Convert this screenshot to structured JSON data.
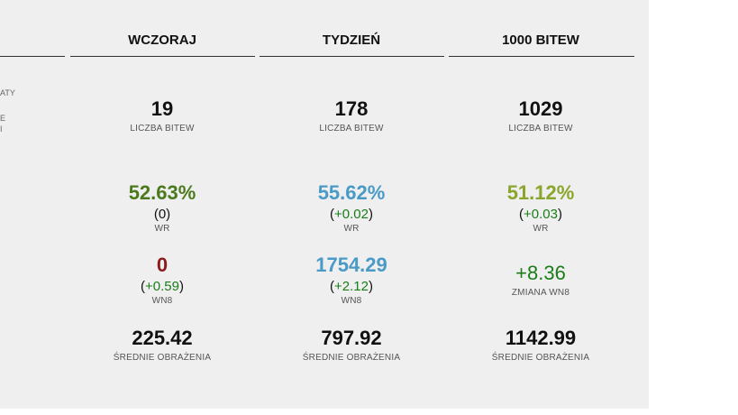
{
  "columns": [
    {
      "header": "WCZORAJ",
      "battles": {
        "value": "19",
        "label": "LICZBA BITEW"
      },
      "wr": {
        "value": "52.63%",
        "delta": "0",
        "label": "WR",
        "color": "#4b7a1e"
      },
      "wn8": {
        "value": "0",
        "delta": "+0.59",
        "label": "WN8",
        "color": "#8b1a1a"
      },
      "dmg": {
        "value": "225.42",
        "label": "ŚREDNIE OBRAŻENIA"
      }
    },
    {
      "header": "TYDZIEŃ",
      "battles": {
        "value": "178",
        "label": "LICZBA BITEW"
      },
      "wr": {
        "value": "55.62%",
        "delta": "+0.02",
        "label": "WR",
        "color": "#4a9ac7"
      },
      "wn8": {
        "value": "1754.29",
        "delta": "+2.12",
        "label": "WN8",
        "color": "#4a9ac7"
      },
      "dmg": {
        "value": "797.92",
        "label": "ŚREDNIE OBRAŻENIA"
      }
    },
    {
      "header": "1000 BITEW",
      "battles": {
        "value": "1029",
        "label": "LICZBA BITEW"
      },
      "wr": {
        "value": "51.12%",
        "delta": "+0.03",
        "label": "WR",
        "color": "#8aa52c"
      },
      "wn8change": {
        "value": "+8.36",
        "label": "ZMIANA WN8",
        "color": "#1a7d1a"
      },
      "dmg": {
        "value": "1142.99",
        "label": "ŚREDNIE OBRAŻENIA"
      }
    }
  ],
  "left_fragments": [
    "ATY",
    "E",
    "I"
  ]
}
